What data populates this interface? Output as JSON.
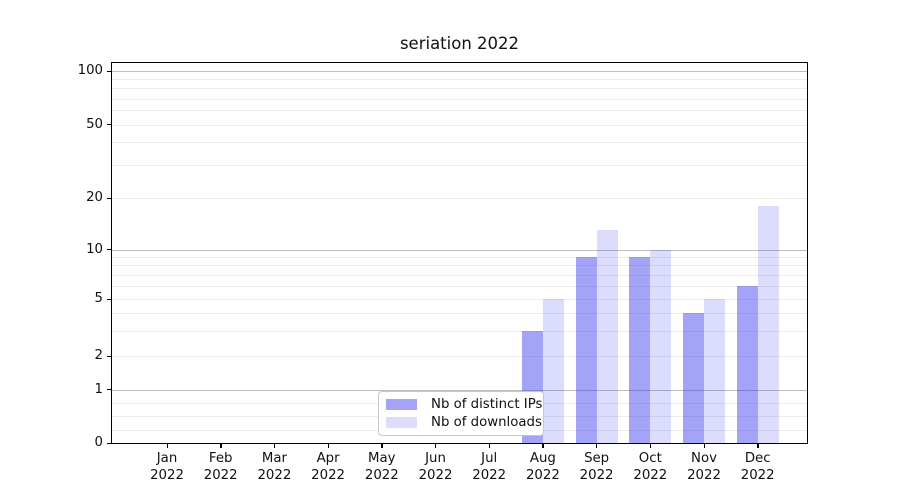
{
  "title": "seriation 2022",
  "legend": {
    "items": [
      {
        "label": "Nb of distinct IPs",
        "color": "rgba(50,50,240,0.45)"
      },
      {
        "label": "Nb of downloads",
        "color": "rgba(50,50,240,0.17)"
      }
    ]
  },
  "axes": {
    "x_year": "2022",
    "x_months": [
      "Jan",
      "Feb",
      "Mar",
      "Apr",
      "May",
      "Jun",
      "Jul",
      "Aug",
      "Sep",
      "Oct",
      "Nov",
      "Dec"
    ],
    "y_tick_labels": [
      "100",
      "50",
      "20",
      "10",
      "5",
      "2",
      "1",
      "0"
    ]
  },
  "chart_data": {
    "type": "bar",
    "title": "seriation 2022",
    "categories": [
      "Jan 2022",
      "Feb 2022",
      "Mar 2022",
      "Apr 2022",
      "May 2022",
      "Jun 2022",
      "Jul 2022",
      "Aug 2022",
      "Sep 2022",
      "Oct 2022",
      "Nov 2022",
      "Dec 2022"
    ],
    "series": [
      {
        "name": "Nb of distinct IPs",
        "values": [
          null,
          null,
          null,
          null,
          null,
          null,
          null,
          3,
          9,
          9,
          4,
          6
        ],
        "color": "rgba(50,50,240,0.45)"
      },
      {
        "name": "Nb of downloads",
        "values": [
          null,
          null,
          null,
          null,
          null,
          null,
          null,
          5,
          13,
          10,
          5,
          18
        ],
        "color": "rgba(50,50,240,0.17)"
      }
    ],
    "yscale": "symlog",
    "ytick_values": [
      0,
      1,
      2,
      5,
      10,
      20,
      50,
      100
    ],
    "ylim": [
      0,
      110
    ],
    "grid": "both",
    "legend_position": "lower center"
  }
}
